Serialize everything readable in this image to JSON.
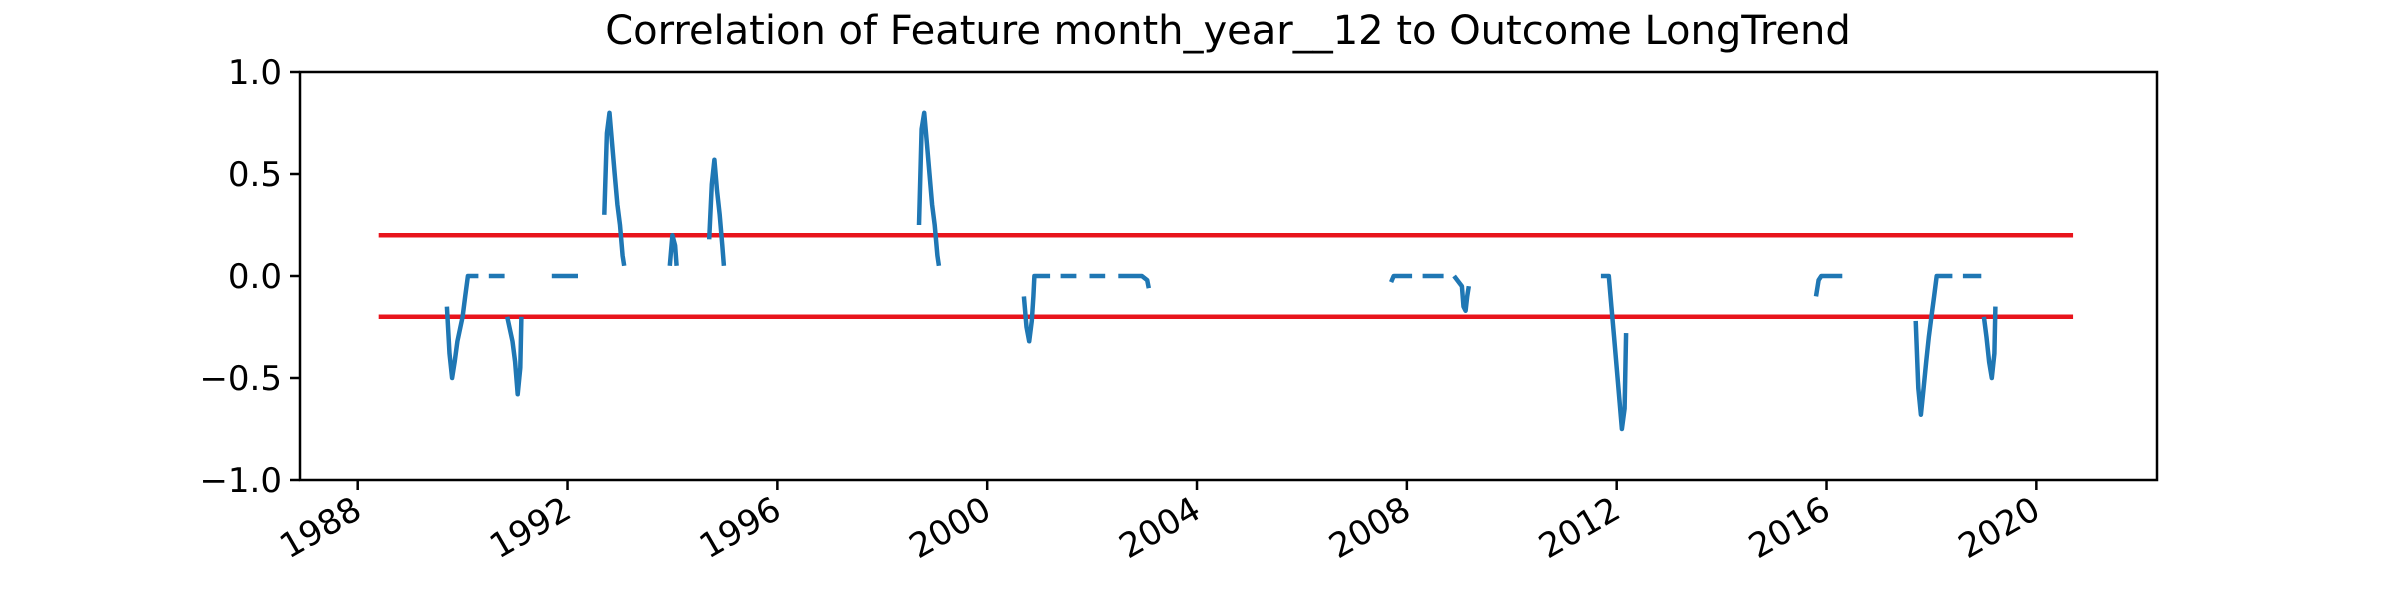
{
  "chart_data": {
    "type": "line",
    "title": "Correlation of Feature month_year__12 to Outcome LongTrend",
    "xlabel": "",
    "ylabel": "",
    "xlim": [
      1986.9,
      2022.3
    ],
    "ylim": [
      -1.0,
      1.0
    ],
    "x_ticks": [
      1988,
      1992,
      1996,
      2000,
      2004,
      2008,
      2012,
      2016,
      2020
    ],
    "x_tick_labels": [
      "1988",
      "1992",
      "1996",
      "2000",
      "2004",
      "2008",
      "2012",
      "2016",
      "2020"
    ],
    "y_ticks": [
      1.0,
      0.5,
      0.0,
      -0.5,
      -1.0
    ],
    "y_tick_labels": [
      "1.0",
      "0.5",
      "0.0",
      "−0.5",
      "−1.0"
    ],
    "grid": false,
    "colors": {
      "series": "#1f77b4",
      "threshold": "#e8141c"
    },
    "thresholds": [
      {
        "y": 0.2,
        "x_start": 1988.4,
        "x_end": 2020.7
      },
      {
        "y": -0.2,
        "x_start": 1988.4,
        "x_end": 2020.7
      }
    ],
    "series": [
      {
        "segments": [
          [
            [
              1989.7,
              -0.15
            ],
            [
              1989.75,
              -0.38
            ],
            [
              1989.8,
              -0.5
            ],
            [
              1989.85,
              -0.42
            ],
            [
              1989.9,
              -0.32
            ],
            [
              1990.0,
              -0.2
            ],
            [
              1990.05,
              -0.1
            ],
            [
              1990.1,
              0.0
            ],
            [
              1990.3,
              0.0
            ]
          ],
          [
            [
              1990.5,
              0.0
            ],
            [
              1990.8,
              0.0
            ]
          ],
          [
            [
              1990.85,
              -0.2
            ],
            [
              1990.95,
              -0.32
            ],
            [
              1991.0,
              -0.42
            ],
            [
              1991.05,
              -0.58
            ],
            [
              1991.1,
              -0.45
            ],
            [
              1991.12,
              -0.2
            ]
          ],
          [
            [
              1991.7,
              0.0
            ],
            [
              1992.2,
              0.0
            ]
          ],
          [
            [
              1992.7,
              0.3
            ],
            [
              1992.75,
              0.7
            ],
            [
              1992.8,
              0.8
            ],
            [
              1992.85,
              0.65
            ],
            [
              1992.9,
              0.5
            ],
            [
              1992.95,
              0.35
            ],
            [
              1993.0,
              0.25
            ],
            [
              1993.05,
              0.1
            ],
            [
              1993.08,
              0.05
            ]
          ],
          [
            [
              1993.95,
              0.05
            ],
            [
              1994.0,
              0.2
            ],
            [
              1994.05,
              0.15
            ],
            [
              1994.08,
              0.05
            ]
          ],
          [
            [
              1994.7,
              0.18
            ],
            [
              1994.75,
              0.45
            ],
            [
              1994.8,
              0.57
            ],
            [
              1994.85,
              0.42
            ],
            [
              1994.9,
              0.3
            ],
            [
              1994.95,
              0.15
            ],
            [
              1994.98,
              0.05
            ]
          ],
          [
            [
              1998.7,
              0.25
            ],
            [
              1998.75,
              0.72
            ],
            [
              1998.8,
              0.8
            ],
            [
              1998.85,
              0.65
            ],
            [
              1998.9,
              0.5
            ],
            [
              1998.95,
              0.35
            ],
            [
              1999.0,
              0.25
            ],
            [
              1999.05,
              0.1
            ],
            [
              1999.08,
              0.05
            ]
          ],
          [
            [
              2000.7,
              -0.1
            ],
            [
              2000.75,
              -0.25
            ],
            [
              2000.8,
              -0.32
            ],
            [
              2000.85,
              -0.22
            ],
            [
              2000.88,
              -0.1
            ],
            [
              2000.9,
              0.0
            ],
            [
              2001.2,
              0.0
            ]
          ],
          [
            [
              2001.4,
              0.0
            ],
            [
              2001.7,
              0.0
            ]
          ],
          [
            [
              2001.95,
              0.0
            ],
            [
              2002.25,
              0.0
            ]
          ],
          [
            [
              2002.5,
              0.0
            ],
            [
              2002.95,
              0.0
            ],
            [
              2003.05,
              -0.02
            ],
            [
              2003.08,
              -0.06
            ]
          ],
          [
            [
              2007.7,
              -0.03
            ],
            [
              2007.75,
              0.0
            ],
            [
              2008.1,
              0.0
            ]
          ],
          [
            [
              2008.3,
              0.0
            ],
            [
              2008.7,
              0.0
            ]
          ],
          [
            [
              2008.9,
              0.0
            ],
            [
              2009.05,
              -0.05
            ],
            [
              2009.08,
              -0.15
            ],
            [
              2009.12,
              -0.17
            ],
            [
              2009.15,
              -0.1
            ],
            [
              2009.18,
              -0.05
            ]
          ],
          [
            [
              2011.7,
              0.0
            ],
            [
              2011.85,
              0.0
            ],
            [
              2011.9,
              -0.15
            ],
            [
              2011.95,
              -0.3
            ],
            [
              2012.0,
              -0.45
            ],
            [
              2012.05,
              -0.6
            ],
            [
              2012.1,
              -0.75
            ],
            [
              2012.15,
              -0.65
            ],
            [
              2012.18,
              -0.28
            ]
          ],
          [
            [
              2015.8,
              -0.1
            ],
            [
              2015.85,
              -0.02
            ],
            [
              2015.9,
              0.0
            ],
            [
              2016.3,
              0.0
            ]
          ],
          [
            [
              2017.7,
              -0.22
            ],
            [
              2017.75,
              -0.55
            ],
            [
              2017.8,
              -0.68
            ],
            [
              2017.85,
              -0.55
            ],
            [
              2017.9,
              -0.42
            ],
            [
              2017.95,
              -0.3
            ],
            [
              2018.0,
              -0.2
            ],
            [
              2018.05,
              -0.1
            ],
            [
              2018.1,
              0.0
            ],
            [
              2018.4,
              0.0
            ]
          ],
          [
            [
              2018.6,
              0.0
            ],
            [
              2018.95,
              0.0
            ]
          ],
          [
            [
              2019.0,
              -0.2
            ],
            [
              2019.05,
              -0.3
            ],
            [
              2019.1,
              -0.42
            ],
            [
              2019.15,
              -0.5
            ],
            [
              2019.2,
              -0.38
            ],
            [
              2019.22,
              -0.15
            ]
          ]
        ]
      }
    ]
  }
}
